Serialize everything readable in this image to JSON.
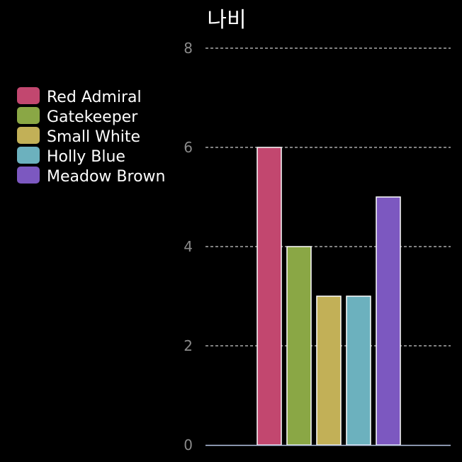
{
  "chart_data": {
    "type": "bar",
    "title": "나비",
    "xlabel": "",
    "ylabel": "",
    "categories": [
      "Red Admiral",
      "Gatekeeper",
      "Small White",
      "Holly Blue",
      "Meadow Brown"
    ],
    "values": [
      6,
      4,
      3,
      3,
      5
    ],
    "colors": [
      "#c2476f",
      "#8aa745",
      "#c2b057",
      "#6cb1be",
      "#7c58c0"
    ],
    "ylim": [
      0,
      8
    ],
    "yticks": [
      0,
      2,
      4,
      6,
      8
    ],
    "grid": true,
    "legend": "left",
    "background": "#000000",
    "grid_color": "#ffffff",
    "axis_color": "#b8c8e6",
    "bar_edge_color": "#ffffff"
  }
}
